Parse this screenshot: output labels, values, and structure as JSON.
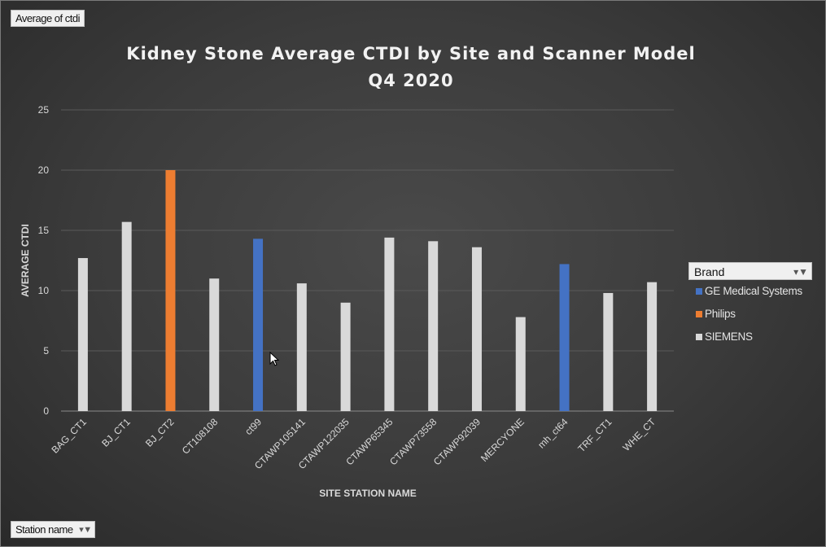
{
  "value_field": "Average of ctdi",
  "row_field": "Station name",
  "colors": {
    "GE Medical Systems": "#4472c4",
    "Philips": "#ed7d31",
    "SIEMENS": "#d9d9d9"
  },
  "chart_data": {
    "type": "bar",
    "title": "Kidney Stone Average CTDI by Site and Scanner Model",
    "subtitle": "Q4 2020",
    "xlabel": "SITE STATION NAME",
    "ylabel": "AVERAGE CTDI",
    "ylim": [
      0,
      25
    ],
    "yticks": [
      0,
      5,
      10,
      15,
      20,
      25
    ],
    "grid": true,
    "legend_title": "Brand",
    "legend_position": "right",
    "categories": [
      "BAG_CT1",
      "BJ_CT1",
      "BJ_CT2",
      "CT108108",
      "ct99",
      "CTAWP105141",
      "CTAWP122035",
      "CTAWP65345",
      "CTAWP73558",
      "CTAWP92039",
      "MERCYONE",
      "mh_ct64",
      "TRF_CT1",
      "WHE_CT"
    ],
    "series": [
      {
        "name": "GE Medical Systems",
        "values": [
          null,
          null,
          null,
          null,
          14.3,
          null,
          null,
          null,
          null,
          null,
          null,
          12.2,
          null,
          null
        ]
      },
      {
        "name": "Philips",
        "values": [
          null,
          null,
          20.0,
          null,
          null,
          null,
          null,
          null,
          null,
          null,
          null,
          null,
          null,
          null
        ]
      },
      {
        "name": "SIEMENS",
        "values": [
          12.7,
          15.7,
          null,
          11.0,
          null,
          10.6,
          9.0,
          14.4,
          14.1,
          13.6,
          7.8,
          null,
          9.8,
          10.7
        ]
      }
    ]
  }
}
